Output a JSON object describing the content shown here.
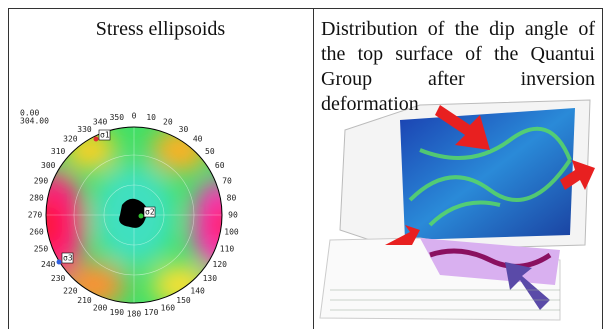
{
  "table": {
    "columns": [
      {
        "title": "Stress ellipsoids",
        "stereonet": {
          "header": [
            "0.00",
            "304.00"
          ],
          "angles": [
            0,
            10,
            20,
            30,
            40,
            50,
            60,
            70,
            80,
            90,
            100,
            110,
            120,
            130,
            140,
            150,
            160,
            170,
            180,
            190,
            200,
            210,
            220,
            230,
            240,
            250,
            260,
            270,
            280,
            290,
            300,
            310,
            320,
            330,
            340,
            350
          ],
          "markers": [
            "σ1",
            "σ2",
            "σ3"
          ]
        }
      },
      {
        "title": "Distribution of the dip angle of the top surface of the Quantui Group after inversion deformation"
      }
    ]
  }
}
